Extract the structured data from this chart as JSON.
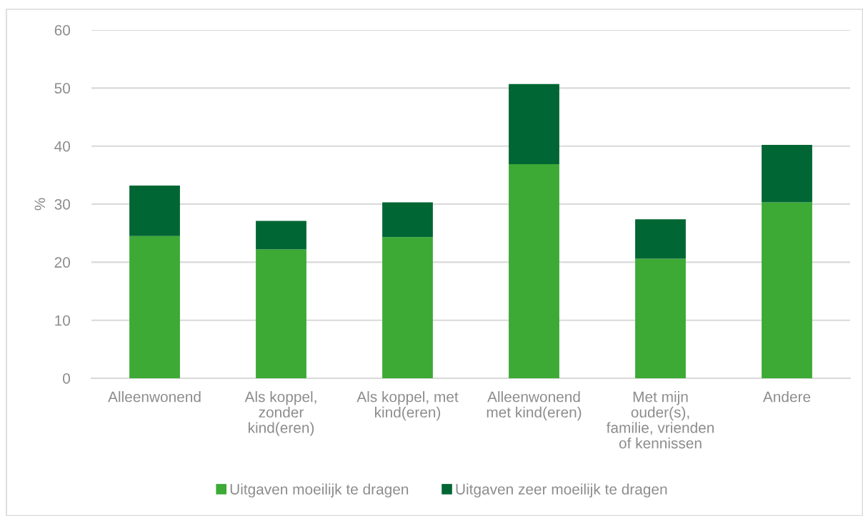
{
  "chart_data": {
    "type": "bar",
    "stacked": true,
    "categories": [
      "Alleenwonend",
      "Als koppel,\nzonder\nkind(eren)",
      "Als koppel, met\nkind(eren)",
      "Alleenwonend\nmet kind(eren)",
      "Met mijn\nouder(s),\nfamilie, vrienden\nof kennissen",
      "Andere"
    ],
    "series": [
      {
        "name": "Uitgaven moeilijk te dragen",
        "color": "#3caa35",
        "values": [
          24.5,
          22.2,
          24.3,
          36.9,
          20.6,
          30.3
        ]
      },
      {
        "name": "Uitgaven zeer moeilijk te dragen",
        "color": "#006633",
        "values": [
          8.7,
          4.9,
          6.0,
          13.8,
          6.8,
          9.9
        ]
      }
    ],
    "ylabel": "%",
    "ylim": [
      0,
      60
    ],
    "yticks": [
      0,
      10,
      20,
      30,
      40,
      50,
      60
    ],
    "grid": "y",
    "legend": "bottom"
  }
}
